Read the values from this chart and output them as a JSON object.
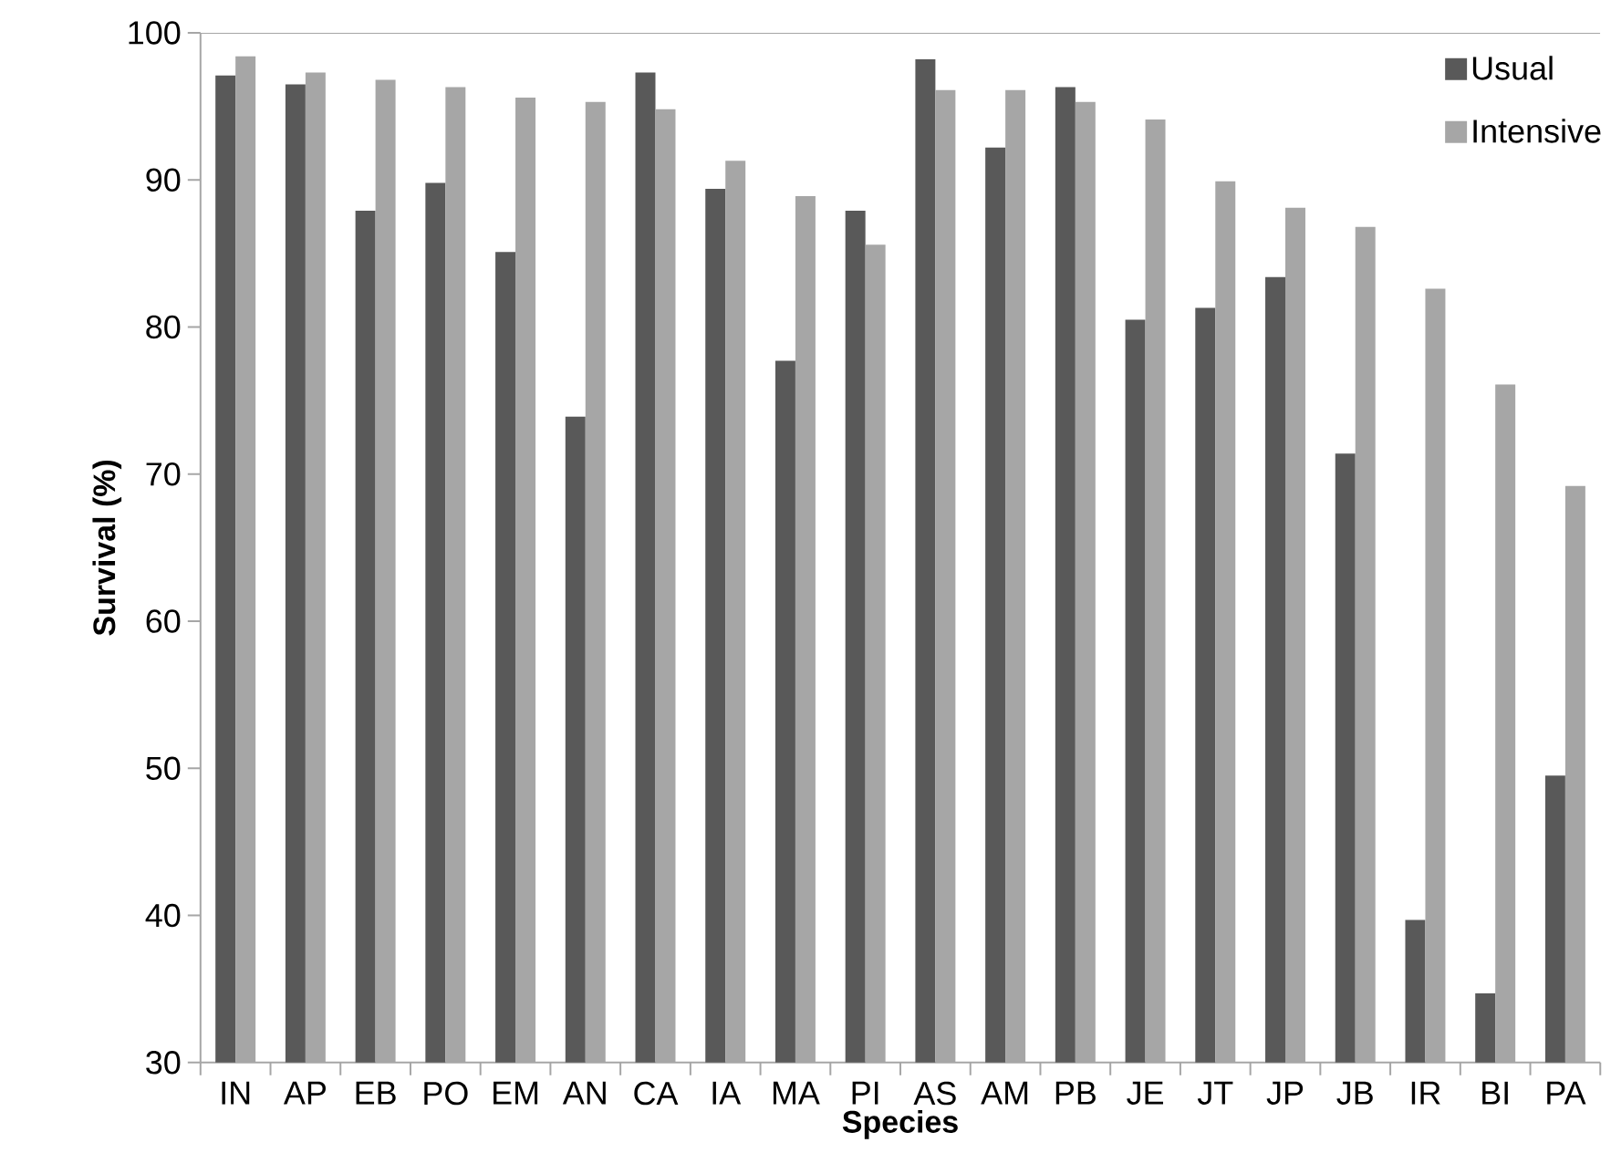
{
  "chart_data": {
    "type": "bar",
    "xlabel": "Species",
    "ylabel": "Survival (%)",
    "categories": [
      "IN",
      "AP",
      "EB",
      "PO",
      "EM",
      "AN",
      "CA",
      "IA",
      "MA",
      "PI",
      "AS",
      "AM",
      "PB",
      "JE",
      "JT",
      "JP",
      "JB",
      "IR",
      "BI",
      "PA"
    ],
    "series": [
      {
        "name": "Usual",
        "color": "#595959",
        "values": [
          97.1,
          96.5,
          87.9,
          89.8,
          85.1,
          73.9,
          97.3,
          89.4,
          77.7,
          87.9,
          98.2,
          92.2,
          96.3,
          80.5,
          81.3,
          83.4,
          71.4,
          39.7,
          34.7,
          49.5
        ]
      },
      {
        "name": "Intensive",
        "color": "#a6a6a6",
        "values": [
          98.4,
          97.3,
          96.8,
          96.3,
          95.6,
          95.3,
          94.8,
          91.3,
          88.9,
          85.6,
          96.1,
          96.1,
          95.3,
          94.1,
          89.9,
          88.1,
          86.8,
          82.6,
          76.1,
          69.2
        ]
      }
    ],
    "ylim": [
      30,
      100
    ],
    "yticks": [
      30,
      40,
      50,
      60,
      70,
      80,
      90,
      100
    ],
    "grid": false,
    "legend": "top right"
  }
}
